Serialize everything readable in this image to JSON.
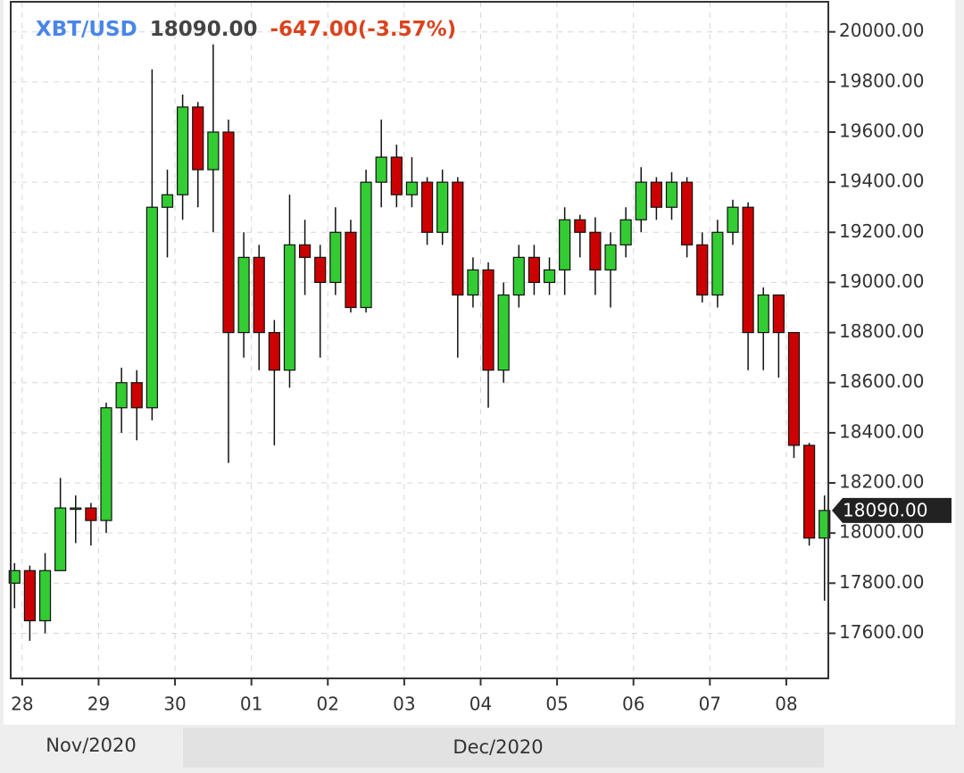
{
  "chart_data": {
    "type": "candlestick",
    "symbol": "XBT/USD",
    "last": {
      "value": 18090,
      "label": "18090.00"
    },
    "change": "-647.00(-3.57%)",
    "up_color": "#33cc33",
    "down_color": "#cc0000",
    "grid": true,
    "xlim": [
      -0.15,
      10.55
    ],
    "xticks": [
      {
        "value": 0,
        "label": "28"
      },
      {
        "value": 1,
        "label": "29"
      },
      {
        "value": 2,
        "label": "30"
      },
      {
        "value": 3,
        "label": "01"
      },
      {
        "value": 4,
        "label": "02"
      },
      {
        "value": 5,
        "label": "03"
      },
      {
        "value": 6,
        "label": "04"
      },
      {
        "value": 7,
        "label": "05"
      },
      {
        "value": 8,
        "label": "06"
      },
      {
        "value": 9,
        "label": "07"
      },
      {
        "value": 10,
        "label": "08"
      }
    ],
    "months": [
      "Nov/2020",
      "Dec/2020"
    ],
    "ylim": [
      17420,
      20120
    ],
    "yticks": [
      {
        "value": 17600,
        "label": "17600.00"
      },
      {
        "value": 17800,
        "label": "17800.00"
      },
      {
        "value": 18000,
        "label": "18000.00"
      },
      {
        "value": 18200,
        "label": "18200.00"
      },
      {
        "value": 18400,
        "label": "18400.00"
      },
      {
        "value": 18600,
        "label": "18600.00"
      },
      {
        "value": 18800,
        "label": "18800.00"
      },
      {
        "value": 19000,
        "label": "19000.00"
      },
      {
        "value": 19200,
        "label": "19200.00"
      },
      {
        "value": 19400,
        "label": "19400.00"
      },
      {
        "value": 19600,
        "label": "19600.00"
      },
      {
        "value": 19800,
        "label": "19800.00"
      },
      {
        "value": 20000,
        "label": "20000.00"
      }
    ],
    "candles": {
      "x": [
        -0.1,
        0.1,
        0.3,
        0.5,
        0.7,
        0.9,
        1.1,
        1.3,
        1.5,
        1.7,
        1.9,
        2.1,
        2.3,
        2.5,
        2.7,
        2.9,
        3.1,
        3.3,
        3.5,
        3.7,
        3.9,
        4.1,
        4.3,
        4.5,
        4.7,
        4.9,
        5.1,
        5.3,
        5.5,
        5.7,
        5.9,
        6.1,
        6.3,
        6.5,
        6.7,
        6.9,
        7.1,
        7.3,
        7.5,
        7.7,
        7.9,
        8.1,
        8.3,
        8.5,
        8.7,
        8.9,
        9.1,
        9.3,
        9.5,
        9.7,
        9.9,
        10.1,
        10.3,
        10.5
      ],
      "open": [
        17800,
        17850,
        17650,
        17850,
        18100,
        18100,
        18050,
        18500,
        18600,
        18500,
        19300,
        19350,
        19700,
        19450,
        19600,
        18800,
        19100,
        18800,
        18650,
        19150,
        19100,
        19000,
        19200,
        18900,
        19400,
        19500,
        19350,
        19400,
        19200,
        19400,
        18950,
        19050,
        18650,
        18950,
        19100,
        19000,
        19050,
        19250,
        19200,
        19050,
        19150,
        19250,
        19400,
        19300,
        19400,
        19150,
        18950,
        19200,
        19300,
        18800,
        18950,
        18800,
        18350,
        17980
      ],
      "high": [
        17880,
        17870,
        17920,
        18220,
        18150,
        18120,
        18520,
        18660,
        18650,
        19850,
        19450,
        19750,
        19720,
        19950,
        19650,
        19200,
        19150,
        18850,
        19350,
        19250,
        19150,
        19300,
        19250,
        19450,
        19650,
        19550,
        19500,
        19420,
        19450,
        19420,
        19100,
        19080,
        19000,
        19150,
        19150,
        19100,
        19300,
        19270,
        19260,
        19200,
        19300,
        19460,
        19420,
        19440,
        19420,
        19200,
        19250,
        19330,
        19320,
        18980,
        18950,
        18800,
        18360,
        18150
      ],
      "low": [
        17700,
        17570,
        17600,
        17850,
        17960,
        17950,
        18000,
        18400,
        18370,
        18450,
        19100,
        19250,
        19300,
        19200,
        18280,
        18700,
        18650,
        18350,
        18580,
        18950,
        18700,
        18950,
        18880,
        18880,
        19300,
        19300,
        19300,
        19150,
        19150,
        18700,
        18900,
        18500,
        18600,
        18900,
        18950,
        18950,
        18950,
        19100,
        18950,
        18900,
        19100,
        19200,
        19250,
        19250,
        19100,
        18920,
        18900,
        19150,
        18650,
        18650,
        18620,
        18300,
        17950,
        17730
      ],
      "close": [
        17850,
        17650,
        17850,
        18100,
        18100,
        18050,
        18500,
        18600,
        18500,
        19300,
        19350,
        19700,
        19450,
        19600,
        18800,
        19100,
        18800,
        18650,
        19150,
        19100,
        19000,
        19200,
        18900,
        19400,
        19500,
        19350,
        19400,
        19200,
        19400,
        18950,
        19050,
        18650,
        18950,
        19100,
        19000,
        19050,
        19250,
        19200,
        19050,
        19150,
        19250,
        19400,
        19300,
        19400,
        19150,
        18950,
        19200,
        19300,
        18800,
        18950,
        18800,
        18350,
        17980,
        18090
      ]
    }
  }
}
